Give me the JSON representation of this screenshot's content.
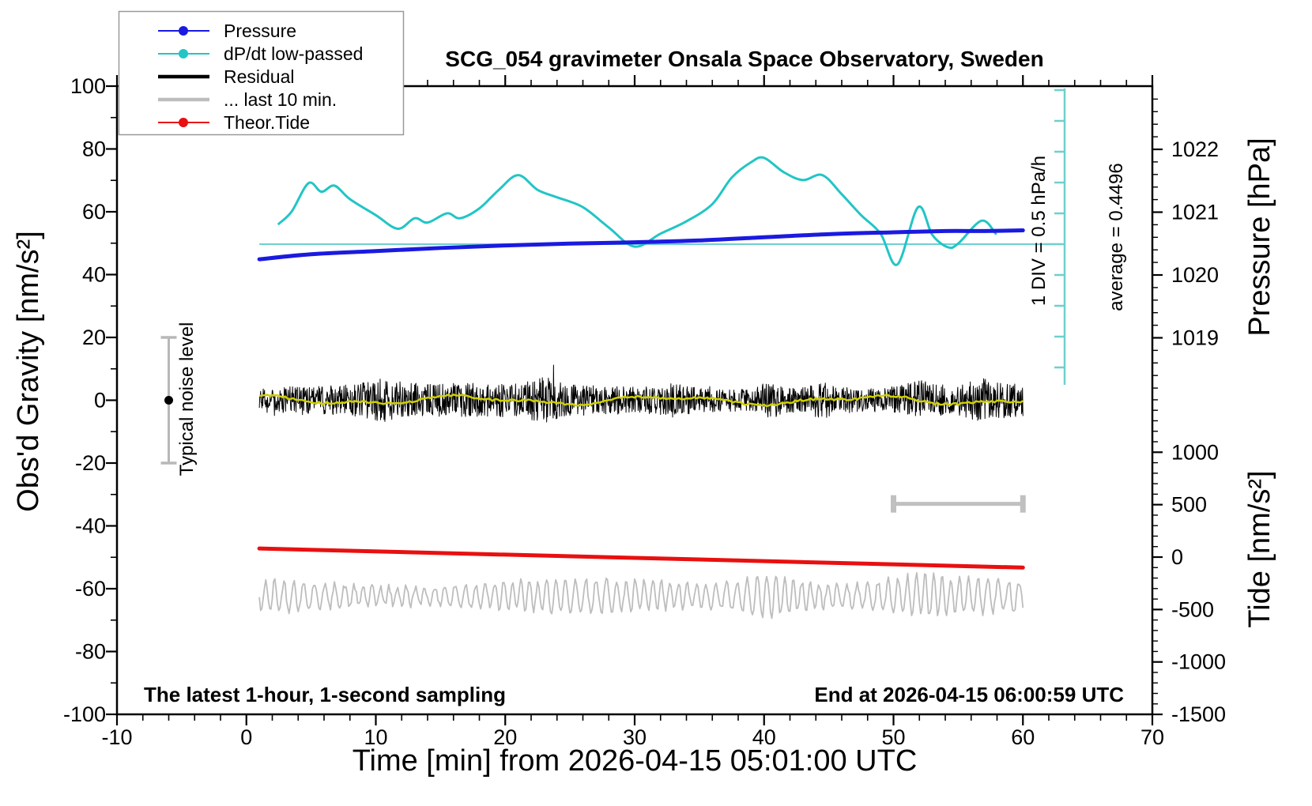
{
  "title": "SCG_054 gravimeter Onsala Space Observatory, Sweden",
  "annotations": {
    "sampling_note": "The latest 1-hour, 1-second sampling",
    "end_time": "End at 2026-04-15 06:00:59 UTC",
    "noise_label": "Typical noise level",
    "div_scale": "1 DIV = 0.5 hPa/h",
    "average": "average = 0.4496"
  },
  "axes": {
    "x": {
      "title": "Time [min] from 2026-04-15 05:01:00 UTC",
      "min": -10,
      "max": 70,
      "major_ticks": [
        -10,
        0,
        10,
        20,
        30,
        40,
        50,
        60,
        70
      ],
      "minor_step": 2
    },
    "gravity": {
      "title": "Obs'd Gravity [nm/s²]",
      "min": -100,
      "max": 100,
      "major_ticks": [
        100,
        80,
        60,
        40,
        20,
        0,
        -20,
        -40,
        -60,
        -80,
        -100
      ],
      "minor_step": 10
    },
    "pressure": {
      "title": "Pressure [hPa]",
      "major_ticks": [
        1022,
        1021,
        1020,
        1019
      ],
      "minor_step": 0.2
    },
    "tide": {
      "title": "Tide [nm/s²]",
      "major_ticks": [
        1000,
        500,
        0,
        -500,
        -1000,
        -1500
      ],
      "minor_step": 100
    }
  },
  "legend": [
    {
      "label": "Pressure",
      "color": "#1a1ae0",
      "marker": "dot-line"
    },
    {
      "label": "dP/dt low-passed",
      "color": "#22c5c5",
      "marker": "dot-line"
    },
    {
      "label": "Residual",
      "color": "#000000",
      "marker": "thick-line"
    },
    {
      "label": "... last 10 min.",
      "color": "#bdbdbd",
      "marker": "thick-line"
    },
    {
      "label": "Theor.Tide",
      "color": "#e81010",
      "marker": "dot-line"
    }
  ],
  "colors": {
    "pressure": "#1a1ae0",
    "dpdt": "#22c5c5",
    "dpdt_guide": "#6fcfcf",
    "residual": "#000000",
    "residual_smooth": "#cfcf00",
    "last10min": "#bdbdbd",
    "tide": "#e81010",
    "scale_bar_gray": "#c0c0c0",
    "noise_bar_gray": "#b8b8b8",
    "frame": "#000000"
  },
  "chart_data": {
    "type": "line",
    "title": "SCG_054 gravimeter Onsala Space Observatory, Sweden",
    "xlabel": "Time [min] from 2026-04-15 05:01:00 UTC",
    "x_range": [
      -10,
      70
    ],
    "data_span_min": [
      1,
      60
    ],
    "gravity_axis": {
      "label": "Obs'd Gravity [nm/s²]",
      "range": [
        -100,
        100
      ]
    },
    "pressure_axis": {
      "label": "Pressure [hPa]",
      "ticks": [
        1019,
        1020,
        1021,
        1022
      ]
    },
    "tide_axis": {
      "label": "Tide [nm/s²]",
      "ticks": [
        1000,
        500,
        0,
        -500,
        -1000,
        -1500
      ]
    },
    "legend_position": "top-left",
    "grid": false,
    "series": [
      {
        "name": "Pressure",
        "unit": "hPa",
        "color": "#1a1ae0",
        "x": [
          1,
          5,
          10,
          15,
          20,
          25,
          30,
          35,
          40,
          45,
          50,
          54,
          57,
          60
        ],
        "y": [
          1020.25,
          1020.33,
          1020.38,
          1020.43,
          1020.47,
          1020.5,
          1020.52,
          1020.55,
          1020.6,
          1020.65,
          1020.68,
          1020.7,
          1020.7,
          1020.71
        ]
      },
      {
        "name": "dP/dt low-passed",
        "unit": "hPa/h",
        "color": "#22c5c5",
        "average": 0.4496,
        "x": [
          2.5,
          3.5,
          4.8,
          5.8,
          6.8,
          8,
          10,
          11.7,
          13,
          14,
          15.5,
          16.5,
          18,
          19.5,
          21,
          22.5,
          24,
          26,
          28,
          30,
          32,
          34,
          36,
          37.5,
          39,
          40,
          41.5,
          43,
          44.5,
          46,
          47.5,
          49,
          50.3,
          51.9,
          53,
          54.2,
          55,
          56.8,
          57.9
        ],
        "y": [
          0.78,
          0.98,
          1.44,
          1.3,
          1.4,
          1.18,
          0.92,
          0.7,
          0.87,
          0.8,
          0.95,
          0.87,
          1.03,
          1.33,
          1.57,
          1.33,
          1.21,
          1.05,
          0.72,
          0.41,
          0.62,
          0.82,
          1.1,
          1.53,
          1.78,
          1.85,
          1.62,
          1.49,
          1.57,
          1.26,
          0.92,
          0.62,
          0.12,
          1.05,
          0.6,
          0.4,
          0.46,
          0.83,
          0.62
        ]
      },
      {
        "name": "Residual",
        "unit": "nm/s²",
        "color": "#000000",
        "description": "1-second residual noise centred on 0, typical amplitude ±6 nm/s², bursts to ±11 near t=10.5, 23, 40.5, 45, 52, 57 min (synthesized)",
        "mean": 0,
        "typical_amplitude": 6
      },
      {
        "name": "Residual low-passed (unlisted yellow overlay)",
        "unit": "nm/s²",
        "color": "#cfcf00",
        "mean": 0,
        "typical_amplitude": 1.5
      },
      {
        "name": "... last 10 min.",
        "unit": "nm/s²",
        "color": "#bdbdbd",
        "description": "Last 10 minutes of residual stretched over the hour, plotted offset at -62 nm/s², amplitude ~5 with burst near t=40 (synthesized)",
        "offset": -62.3,
        "typical_amplitude": 5,
        "burst_at_min": 40.5
      },
      {
        "name": "Theor.Tide",
        "unit": "nm/s² (tide axis)",
        "color": "#e81010",
        "x": [
          1,
          60
        ],
        "y": [
          82,
          -100
        ]
      }
    ],
    "scale_bars": {
      "dpdt_divisions": {
        "label": "1 DIV = 0.5 hPa/h",
        "average_label": "average = 0.4496",
        "average_value": 0.4496
      },
      "ten_min_bar": {
        "from_min": 50,
        "to_min": 60,
        "at_gravity": -33
      },
      "noise_bar": {
        "at_min": -6,
        "gravity_span": [
          -20,
          20
        ],
        "label": "Typical noise level"
      }
    }
  }
}
